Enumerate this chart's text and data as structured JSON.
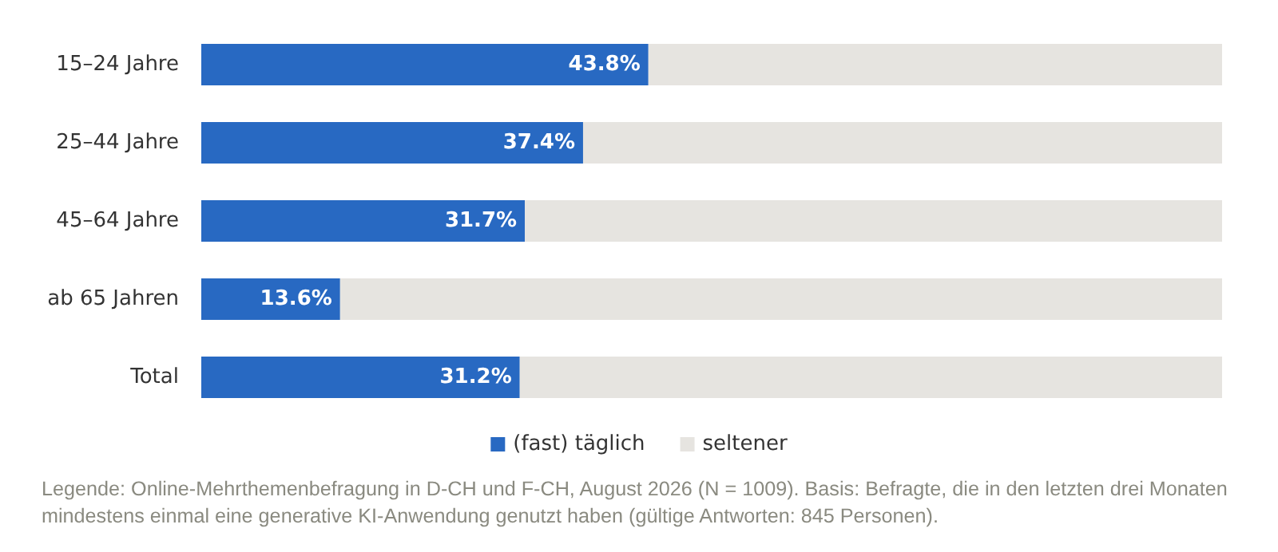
{
  "chart_data": {
    "type": "bar",
    "orientation": "horizontal",
    "stacked": true,
    "categories": [
      "15–24 Jahre",
      "25–44 Jahre",
      "45–64 Jahre",
      "ab 65 Jahren",
      "Total"
    ],
    "series": [
      {
        "name": "(fast) täglich",
        "color": "#2869c2",
        "values": [
          43.8,
          37.4,
          31.7,
          13.6,
          31.2
        ],
        "value_labels": [
          "43.8%",
          "37.4%",
          "31.7%",
          "13.6%",
          "31.2%"
        ]
      },
      {
        "name": "seltener",
        "color": "#e6e4e0",
        "values": [
          56.2,
          62.6,
          68.3,
          86.4,
          68.8
        ]
      }
    ],
    "legend": "bottom",
    "annotations": [
      "Legende: Online-Mehrthemenbefragung in D-CH und F-CH, August 2026 (N = 1009). Basis: Befragte, die in den letzten drei Monaten mindestens einmal eine generative KI-Anwendung genutzt haben (gültige Antworten: 845 Personen)."
    ]
  }
}
